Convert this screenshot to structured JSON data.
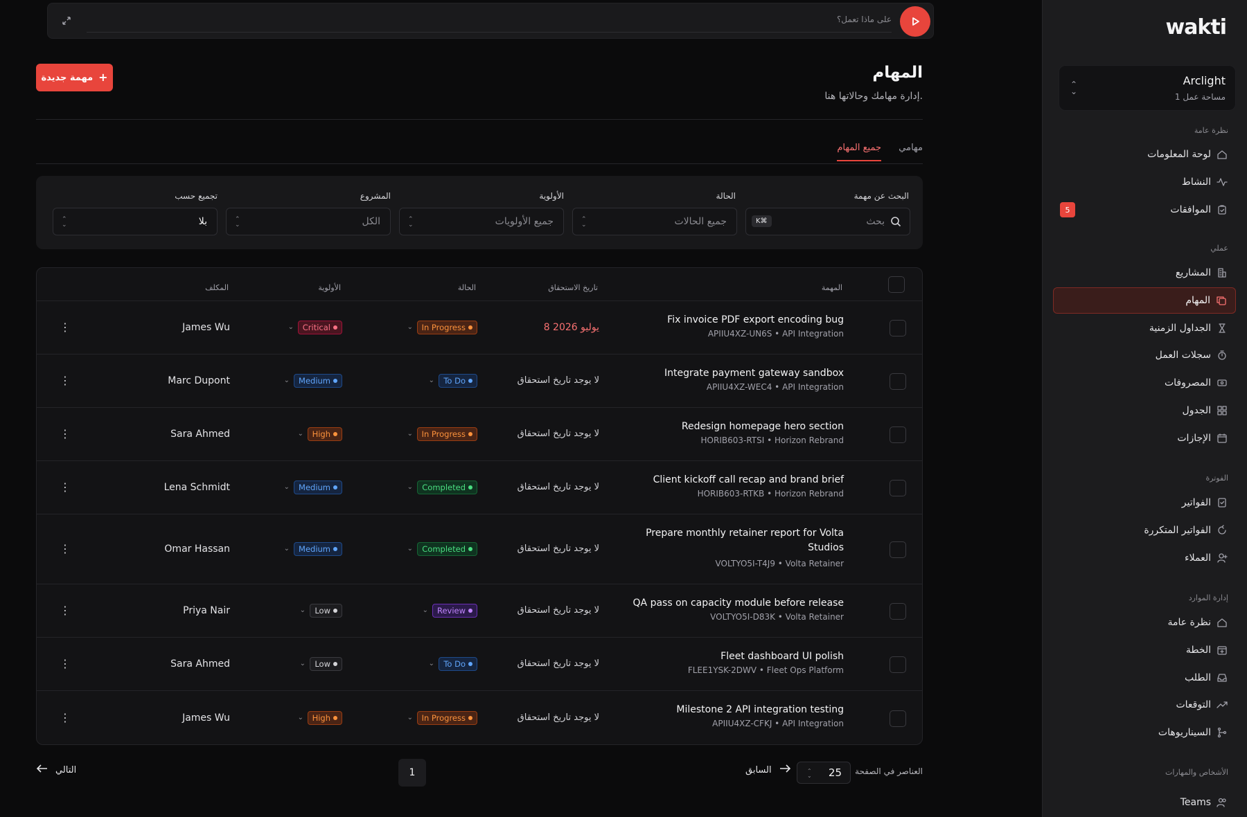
{
  "command_bar": {
    "placeholder": "على ماذا تعمل؟"
  },
  "header": {
    "title": "المهام",
    "subtitle": "إدارة مهامك وحالاتها هنا.",
    "new_task_label": "مهمة جديدة"
  },
  "tabs": [
    {
      "label": "مهامي",
      "active": false
    },
    {
      "label": "جميع المهام",
      "active": true
    }
  ],
  "filters": {
    "search": {
      "label": "البحث عن مهمة",
      "placeholder": "بحث",
      "shortcut": "K⌘"
    },
    "status": {
      "label": "الحالة",
      "value": "جميع الحالات"
    },
    "priority": {
      "label": "الأولوية",
      "value": "جميع الأولويات"
    },
    "project": {
      "label": "المشروع",
      "value": "الكل"
    },
    "group_by": {
      "label": "تجميع حسب",
      "value": "بلا"
    }
  },
  "table": {
    "headers": {
      "task": "المهمة",
      "due": "تاريخ الاستحقاق",
      "status": "الحالة",
      "priority": "الأولوية",
      "assignee": "المكلف"
    },
    "rows": [
      {
        "title": "Fix invoice PDF export encoding bug",
        "title2": "",
        "code": "APIIU4XZ-UN6S • API Integration",
        "due": "8 يوليو 2026",
        "overdue": true,
        "status": "In Progress",
        "priority": "Critical",
        "assignee": "James Wu"
      },
      {
        "title": "Integrate payment gateway sandbox",
        "title2": "",
        "code": "APIIU4XZ-WEC4 • API Integration",
        "due": "لا يوجد تاريخ استحقاق",
        "overdue": false,
        "status": "To Do",
        "priority": "Medium",
        "assignee": "Marc Dupont"
      },
      {
        "title": "Redesign homepage hero section",
        "title2": "",
        "code": "HORIB603-RTSI • Horizon Rebrand",
        "due": "لا يوجد تاريخ استحقاق",
        "overdue": false,
        "status": "In Progress",
        "priority": "High",
        "assignee": "Sara Ahmed"
      },
      {
        "title": "Client kickoff call recap and brand brief",
        "title2": "",
        "code": "HORIB603-RTKB • Horizon Rebrand",
        "due": "لا يوجد تاريخ استحقاق",
        "overdue": false,
        "status": "Completed",
        "priority": "Medium",
        "assignee": "Lena Schmidt"
      },
      {
        "title": "Prepare monthly retainer report for Volta",
        "title2": "Studios",
        "code": "VOLTYO5I-T4J9 • Volta Retainer",
        "due": "لا يوجد تاريخ استحقاق",
        "overdue": false,
        "status": "Completed",
        "priority": "Medium",
        "assignee": "Omar Hassan"
      },
      {
        "title": "QA pass on capacity module before release",
        "title2": "",
        "code": "VOLTYO5I-D83K • Volta Retainer",
        "due": "لا يوجد تاريخ استحقاق",
        "overdue": false,
        "status": "Review",
        "priority": "Low",
        "assignee": "Priya Nair"
      },
      {
        "title": "Fleet dashboard UI polish",
        "title2": "",
        "code": "FLEE1YSK-2DWV • Fleet Ops Platform",
        "due": "لا يوجد تاريخ استحقاق",
        "overdue": false,
        "status": "To Do",
        "priority": "Low",
        "assignee": "Sara Ahmed"
      },
      {
        "title": "Milestone 2 API integration testing",
        "title2": "",
        "code": "APIIU4XZ-CFKJ • API Integration",
        "due": "لا يوجد تاريخ استحقاق",
        "overdue": false,
        "status": "In Progress",
        "priority": "High",
        "assignee": "James Wu"
      }
    ]
  },
  "pagination": {
    "next": "التالي",
    "page": "1",
    "prev": "السابق",
    "page_size": "25",
    "per_page_label": "العناصر في الصفحة"
  },
  "sidebar": {
    "logo": "wakti",
    "workspace": {
      "name": "Arclight",
      "sub": "1 مساحة عمل"
    },
    "sections": [
      {
        "title": "نظرة عامة",
        "items": [
          {
            "label": "لوحة المعلومات",
            "icon": "home-icon"
          },
          {
            "label": "النشاط",
            "icon": "activity-icon"
          },
          {
            "label": "الموافقات",
            "icon": "clipboard-check-icon",
            "badge": "5"
          }
        ]
      },
      {
        "title": "عملي",
        "items": [
          {
            "label": "المشاريع",
            "icon": "building-icon"
          },
          {
            "label": "المهام",
            "icon": "copy-icon",
            "active": true
          },
          {
            "label": "الجداول الزمنية",
            "icon": "hourglass-icon"
          },
          {
            "label": "سجلات العمل",
            "icon": "timer-icon"
          },
          {
            "label": "المصروفات",
            "icon": "receipt-icon"
          },
          {
            "label": "الجدول",
            "icon": "grid-icon"
          },
          {
            "label": "الإجازات",
            "icon": "calendar-icon"
          }
        ]
      },
      {
        "title": "الفوترة",
        "items": [
          {
            "label": "الفواتير",
            "icon": "invoice-icon"
          },
          {
            "label": "الفواتير المتكررة",
            "icon": "refresh-icon"
          },
          {
            "label": "العملاء",
            "icon": "user-plus-icon"
          }
        ]
      },
      {
        "title": "إدارة الموارد",
        "items": [
          {
            "label": "نظرة عامة",
            "icon": "home-icon"
          },
          {
            "label": "الخطة",
            "icon": "calendar-plus-icon"
          },
          {
            "label": "الطلب",
            "icon": "inbox-icon"
          },
          {
            "label": "التوقعات",
            "icon": "trend-icon"
          },
          {
            "label": "السيناريوهات",
            "icon": "branch-icon"
          }
        ]
      },
      {
        "title": "الأشخاص والمهارات",
        "items": [
          {
            "label": "Teams",
            "icon": "users-icon"
          }
        ]
      }
    ]
  }
}
